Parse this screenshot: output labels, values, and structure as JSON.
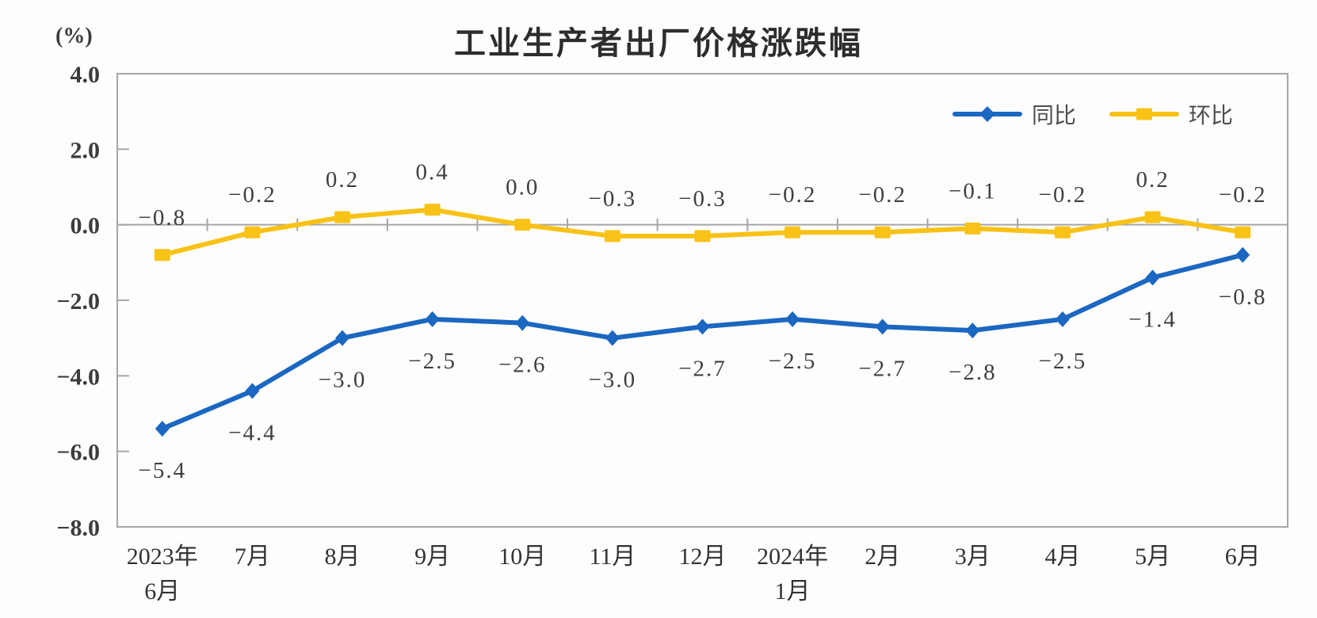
{
  "chart_data": {
    "type": "line",
    "title": "工业生产者出厂价格涨跌幅",
    "unit_label": "(%)",
    "categories": [
      "2023年\n6月",
      "7月",
      "8月",
      "9月",
      "10月",
      "11月",
      "12月",
      "2024年\n1月",
      "2月",
      "3月",
      "4月",
      "5月",
      "6月"
    ],
    "series": [
      {
        "name": "同比",
        "marker": "diamond",
        "color": "#1B67C1",
        "values": [
          -5.4,
          -4.4,
          -3.0,
          -2.5,
          -2.6,
          -3.0,
          -2.7,
          -2.5,
          -2.7,
          -2.8,
          -2.5,
          -1.4,
          -0.8
        ],
        "labels": [
          "−5.4",
          "−4.4",
          "−3.0",
          "−2.5",
          "−2.6",
          "−3.0",
          "−2.7",
          "−2.5",
          "−2.7",
          "−2.8",
          "−2.5",
          "−1.4",
          "−0.8"
        ]
      },
      {
        "name": "环比",
        "marker": "square",
        "color": "#F8C216",
        "values": [
          -0.8,
          -0.2,
          0.2,
          0.4,
          0.0,
          -0.3,
          -0.3,
          -0.2,
          -0.2,
          -0.1,
          -0.2,
          0.2,
          -0.2
        ],
        "labels": [
          "−0.8",
          "−0.2",
          "0.2",
          "0.4",
          "0.0",
          "−0.3",
          "−0.3",
          "−0.2",
          "−0.2",
          "−0.1",
          "−0.2",
          "0.2",
          "−0.2"
        ]
      }
    ],
    "y_axis": {
      "min": -8,
      "max": 4,
      "tick_step": 2,
      "tick_labels": [
        "4.0",
        "2.0",
        "0.0",
        "−2.0",
        "−4.0",
        "−6.0",
        "−8.0"
      ]
    },
    "legend_position": "top-right",
    "grid": false,
    "axis_color": "#A6A6A6",
    "label_color": "#3f3f3f",
    "tick_label_color": "#3c3c3c",
    "x_label_color": "#333333"
  }
}
